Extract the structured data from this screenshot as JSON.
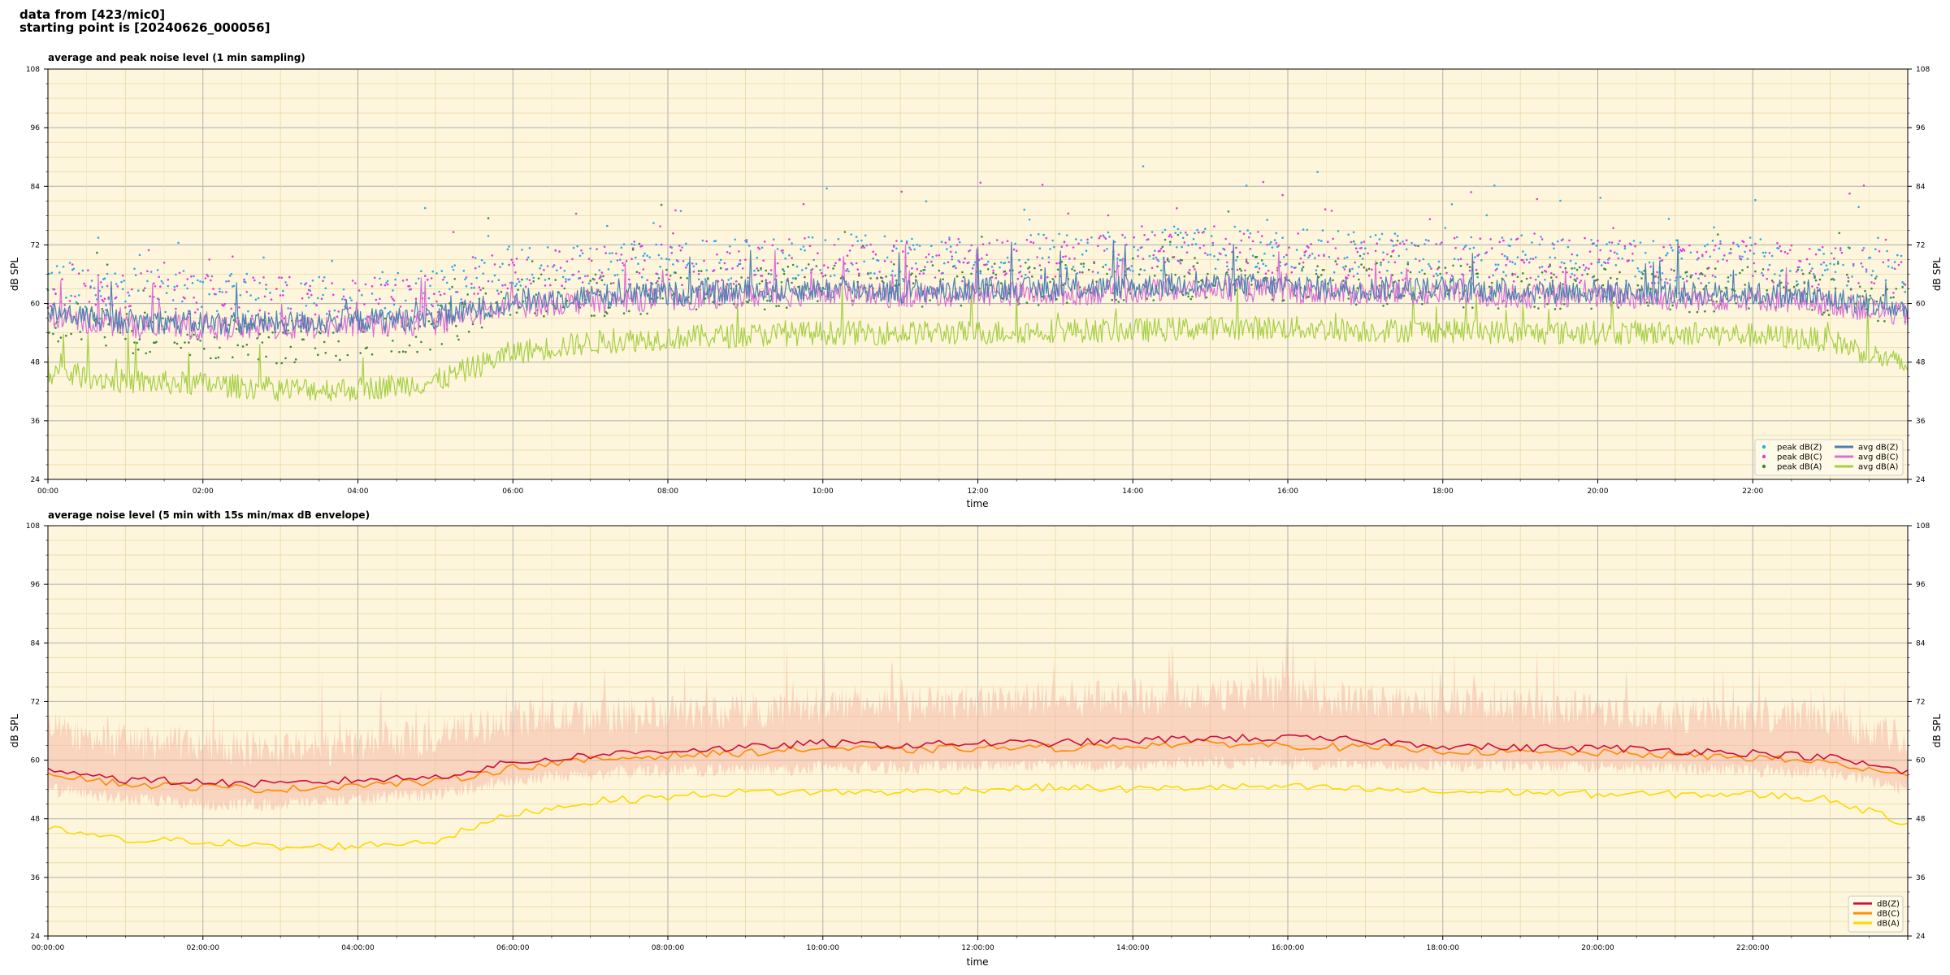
{
  "header": {
    "line1": "data from [423/mic0]",
    "line2": "starting point is [20240626_000056]"
  },
  "colors": {
    "background": "#fdf6dc",
    "peak_z": "#2ea8e8",
    "peak_c": "#e23ae0",
    "peak_a": "#3a8a3a",
    "avg_z": "#4c7fb0",
    "avg_c": "#da70d6",
    "avg_a": "#a6cf45",
    "db_z": "#cc0f3c",
    "db_c": "#ff8c00",
    "db_a": "#ffd700",
    "envelope": "#f6b8a6"
  },
  "chart_data": [
    {
      "type": "line",
      "title": "average and peak noise level (1 min sampling)",
      "xlabel": "time",
      "ylabel": "dB SPL",
      "ylim": [
        24,
        108
      ],
      "yticks": [
        "24",
        "36",
        "48",
        "60",
        "72",
        "84",
        "96",
        "108"
      ],
      "x_tick_labels": [
        "00:00",
        "02:00",
        "04:00",
        "06:00",
        "08:00",
        "10:00",
        "12:00",
        "14:00",
        "16:00",
        "18:00",
        "20:00",
        "22:00"
      ],
      "x_hours": [
        0,
        1,
        2,
        3,
        4,
        5,
        6,
        7,
        8,
        9,
        10,
        11,
        12,
        13,
        14,
        15,
        16,
        17,
        18,
        19,
        20,
        21,
        22,
        23,
        24
      ],
      "legend_position": "bottom-right",
      "grid": true,
      "series": [
        {
          "name": "peak dB(Z)",
          "kind": "scatter",
          "values": [
            64.5,
            63.0,
            62.0,
            61.5,
            61.0,
            62.5,
            68.0,
            67.5,
            68.5,
            69.0,
            70.0,
            69.5,
            70.0,
            70.0,
            71.0,
            71.5,
            71.0,
            70.0,
            69.5,
            69.5,
            69.0,
            68.5,
            69.0,
            68.0,
            66.5
          ]
        },
        {
          "name": "peak dB(C)",
          "kind": "scatter",
          "values": [
            64.0,
            62.5,
            61.5,
            61.0,
            60.5,
            62.0,
            67.5,
            67.0,
            68.0,
            68.5,
            69.0,
            69.0,
            69.0,
            69.5,
            70.0,
            70.5,
            70.0,
            69.5,
            69.0,
            69.0,
            68.5,
            68.0,
            68.5,
            67.5,
            66.0
          ]
        },
        {
          "name": "peak dB(A)",
          "kind": "scatter",
          "values": [
            57.0,
            54.0,
            53.0,
            52.0,
            53.0,
            55.0,
            62.0,
            61.5,
            62.5,
            63.0,
            64.0,
            63.5,
            64.0,
            64.0,
            65.0,
            65.5,
            65.0,
            64.0,
            63.5,
            63.5,
            63.0,
            62.5,
            63.0,
            62.0,
            60.0
          ]
        },
        {
          "name": "avg dB(Z)",
          "kind": "line",
          "values": [
            58.0,
            56.5,
            56.0,
            56.0,
            56.5,
            57.0,
            60.5,
            61.5,
            62.0,
            62.5,
            63.0,
            62.5,
            63.0,
            63.0,
            63.5,
            64.0,
            63.5,
            63.0,
            63.0,
            62.5,
            62.5,
            62.0,
            62.0,
            61.0,
            58.5
          ]
        },
        {
          "name": "avg dB(C)",
          "kind": "line",
          "values": [
            57.0,
            55.5,
            55.0,
            55.0,
            55.5,
            56.0,
            59.5,
            60.5,
            61.0,
            61.5,
            62.0,
            61.5,
            62.0,
            62.0,
            62.5,
            63.0,
            62.5,
            62.0,
            62.0,
            61.5,
            61.5,
            61.0,
            61.0,
            60.0,
            57.5
          ]
        },
        {
          "name": "avg dB(A)",
          "kind": "line",
          "values": [
            46.0,
            44.0,
            43.5,
            42.5,
            42.5,
            44.0,
            50.0,
            52.0,
            53.0,
            53.5,
            54.0,
            54.0,
            54.0,
            54.5,
            54.5,
            55.0,
            55.0,
            54.5,
            54.5,
            54.0,
            54.0,
            54.0,
            53.5,
            52.5,
            47.0
          ]
        }
      ]
    },
    {
      "type": "line",
      "title": "average noise level (5 min with 15s min/max dB envelope)",
      "xlabel": "time",
      "ylabel": "dB SPL",
      "ylim": [
        24,
        108
      ],
      "yticks": [
        "24",
        "36",
        "48",
        "60",
        "72",
        "84",
        "96",
        "108"
      ],
      "x_tick_labels": [
        "00:00:00",
        "02:00:00",
        "04:00:00",
        "06:00:00",
        "08:00:00",
        "10:00:00",
        "12:00:00",
        "14:00:00",
        "16:00:00",
        "18:00:00",
        "20:00:00",
        "22:00:00"
      ],
      "x_hours": [
        0,
        1,
        2,
        3,
        4,
        5,
        6,
        7,
        8,
        9,
        10,
        11,
        12,
        13,
        14,
        15,
        16,
        17,
        18,
        19,
        20,
        21,
        22,
        23,
        24
      ],
      "legend_position": "bottom-right",
      "grid": true,
      "envelope": {
        "max": [
          66.0,
          64.0,
          63.0,
          62.5,
          63.0,
          64.5,
          68.5,
          69.0,
          69.5,
          70.0,
          71.5,
          71.5,
          72.0,
          72.5,
          73.0,
          74.0,
          73.5,
          72.0,
          71.5,
          71.0,
          70.5,
          69.5,
          69.5,
          68.5,
          64.0
        ],
        "min": [
          54.0,
          52.0,
          51.0,
          51.0,
          52.0,
          53.0,
          56.0,
          57.0,
          58.0,
          58.0,
          58.5,
          58.5,
          59.0,
          59.0,
          59.0,
          59.5,
          59.5,
          59.0,
          59.0,
          59.0,
          58.5,
          58.5,
          58.0,
          57.5,
          54.0
        ]
      },
      "series": [
        {
          "name": "dB(Z)",
          "kind": "line",
          "values": [
            58.5,
            56.0,
            55.5,
            55.0,
            56.0,
            56.5,
            59.5,
            61.0,
            62.0,
            62.5,
            63.5,
            63.0,
            63.5,
            63.5,
            64.0,
            64.5,
            64.5,
            64.0,
            63.0,
            62.5,
            62.5,
            62.0,
            61.5,
            60.5,
            57.5
          ]
        },
        {
          "name": "dB(C)",
          "kind": "line",
          "values": [
            57.5,
            55.0,
            54.5,
            54.0,
            55.0,
            55.5,
            58.5,
            60.0,
            61.0,
            61.5,
            62.5,
            62.0,
            62.5,
            62.5,
            63.0,
            63.5,
            63.0,
            62.5,
            62.0,
            61.5,
            61.5,
            61.0,
            60.5,
            59.5,
            56.5
          ]
        },
        {
          "name": "dB(A)",
          "kind": "line",
          "values": [
            46.0,
            43.5,
            43.5,
            42.0,
            42.5,
            43.5,
            49.0,
            51.5,
            52.5,
            53.5,
            53.5,
            53.5,
            54.0,
            54.5,
            54.0,
            54.5,
            54.5,
            54.0,
            53.5,
            53.5,
            53.0,
            53.0,
            53.0,
            52.0,
            47.0
          ]
        }
      ]
    }
  ]
}
